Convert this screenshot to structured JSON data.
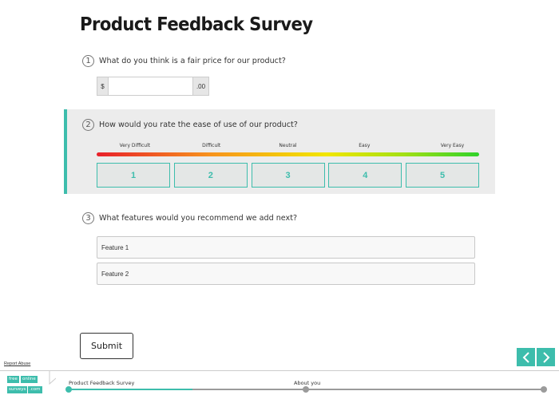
{
  "survey": {
    "title": "Product Feedback Survey"
  },
  "questions": [
    {
      "number": "1",
      "text": "What do you think is a fair price for our product?",
      "currency_symbol": "$",
      "cents_suffix": ".00",
      "value": ""
    },
    {
      "number": "2",
      "text": "How would you rate the ease of use of our product?",
      "scale_labels": [
        "Very Difficult",
        "Difficult",
        "Neutral",
        "Easy",
        "Very Easy"
      ],
      "options": [
        "1",
        "2",
        "3",
        "4",
        "5"
      ]
    },
    {
      "number": "3",
      "text": "What features would you recommend we add next?",
      "inputs": [
        "Feature 1",
        "Feature 2"
      ]
    }
  ],
  "submit_label": "Submit",
  "report_abuse": "Report Abuse",
  "logo": {
    "line1a": "free",
    "line1b": "online",
    "line2a": "surveys",
    "line2b": ".com"
  },
  "progress": {
    "steps": [
      "Product Feedback Survey",
      "About you"
    ],
    "fraction_complete": 0.26
  },
  "colors": {
    "accent": "#3dbdac",
    "panel": "#ececec"
  },
  "icons": {
    "prev": "chevron-left-icon",
    "next": "chevron-right-icon"
  }
}
